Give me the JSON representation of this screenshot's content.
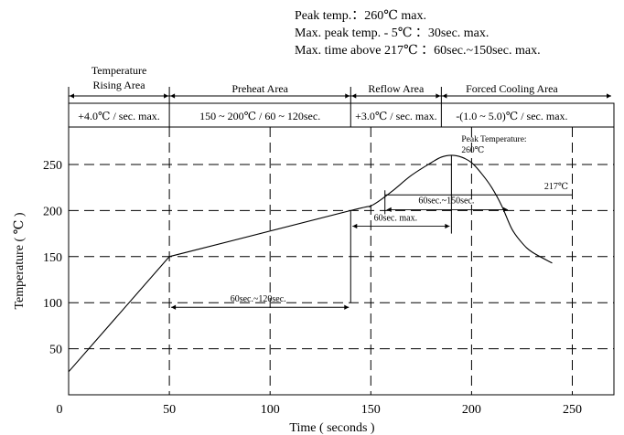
{
  "chart_data": {
    "type": "line",
    "xlabel": "Time ( seconds )",
    "ylabel": "Temperature ( ℃ )",
    "xlim": [
      0,
      260
    ],
    "ylim": [
      0,
      285
    ],
    "xticks": [
      0,
      50,
      100,
      150,
      200,
      250
    ],
    "yticks": [
      50,
      100,
      150,
      200,
      250
    ],
    "grid": true,
    "series": [
      {
        "x": [
          0,
          50,
          140,
          150,
          160,
          170,
          180,
          185,
          190,
          195,
          200,
          205,
          210,
          215,
          220,
          225,
          230,
          240
        ],
        "y": [
          25,
          150,
          200,
          205,
          220,
          238,
          252,
          258,
          260,
          258,
          252,
          240,
          225,
          205,
          180,
          165,
          155,
          143
        ]
      }
    ],
    "header_lines": [
      "Peak temp.：260℃ max.",
      "Max. peak temp. - 5℃ ：30sec. max.",
      "Max. time above 217℃ ：60sec.~150sec. max."
    ],
    "zones": [
      {
        "name_lines": [
          "Temperature",
          "Rising Area"
        ],
        "rate": "+4.0℃ / sec. max.",
        "x_start": 0,
        "x_end": 50
      },
      {
        "name_lines": [
          "Preheat Area"
        ],
        "rate": "150 ~ 200℃ / 60 ~ 120sec.",
        "x_start": 50,
        "x_end": 140
      },
      {
        "name_lines": [
          "Reflow Area"
        ],
        "rate": "+3.0℃ / sec. max.",
        "x_start": 140,
        "x_end": 185
      },
      {
        "name_lines": [
          "Forced Cooling Area"
        ],
        "rate": "-(1.0 ~ 5.0)℃ / sec. max.",
        "x_start": 185,
        "x_end": 255
      }
    ],
    "annotations": {
      "peak_label_lines": [
        "Peak Temperature:",
        "260℃"
      ],
      "level_217_label": "217℃",
      "preheat_duration": "60sec.~120sec.",
      "reflow_duration": "60sec. max.",
      "above_217_duration": "60sec.~150sec."
    }
  }
}
